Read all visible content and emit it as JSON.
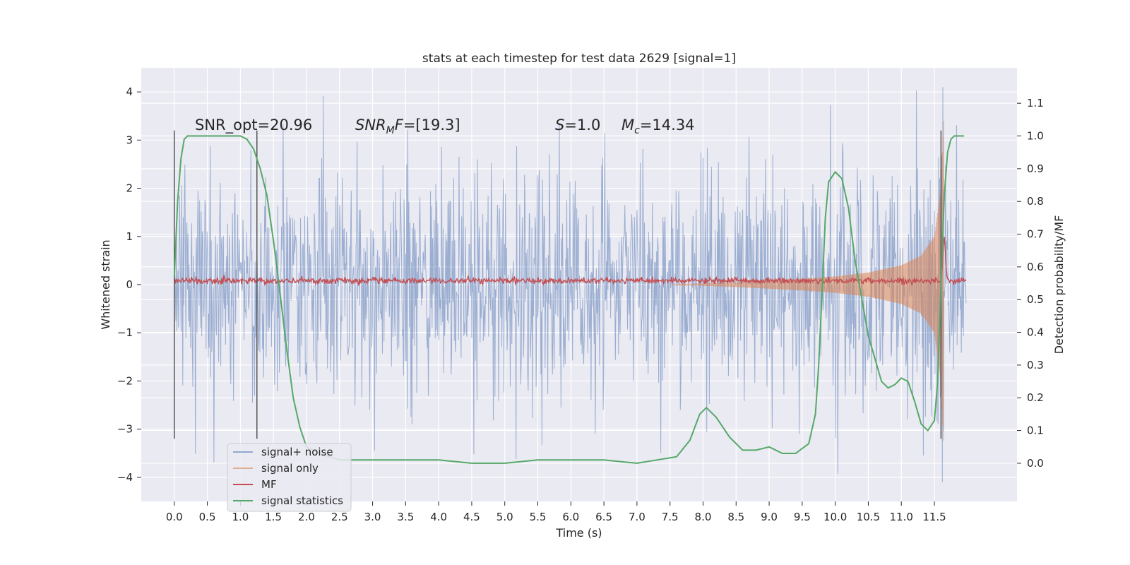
{
  "chart_data": {
    "type": "line",
    "title": "stats at each timestep for test data 2629 [signal=1]",
    "xlabel": "Time (s)",
    "ylabel": "Whitened strain",
    "y2label": "Detection probability/MF",
    "xlim": [
      -0.5,
      12.75
    ],
    "ylim": [
      -4.5,
      4.5
    ],
    "y2lim": [
      -0.1167,
      1.2083
    ],
    "xticks": [
      0.0,
      0.5,
      1.0,
      1.5,
      2.0,
      2.5,
      3.0,
      3.5,
      4.0,
      4.5,
      5.0,
      5.5,
      6.0,
      6.5,
      7.0,
      7.5,
      8.0,
      8.5,
      9.0,
      9.5,
      10.0,
      10.5,
      11.0,
      11.5
    ],
    "xtick_labels": [
      "0.0",
      "0.5",
      "1.0",
      "1.5",
      "2.0",
      "2.5",
      "3.0",
      "3.5",
      "4.0",
      "4.5",
      "5.0",
      "5.5",
      "6.0",
      "6.5",
      "7.0",
      "7.5",
      "8.0",
      "8.5",
      "9.0",
      "9.5",
      "10.0",
      "10.5",
      "11.0",
      "11.5"
    ],
    "yticks": [
      4,
      3,
      2,
      1,
      0,
      -1,
      -2,
      -3,
      -4
    ],
    "ytick_labels": [
      "4",
      "3",
      "2",
      "1",
      "0",
      "−1",
      "−2",
      "−3",
      "−4"
    ],
    "y2ticks": [
      1.1,
      1.0,
      0.9,
      0.8,
      0.7,
      0.6,
      0.5,
      0.4,
      0.3,
      0.2,
      0.1,
      0.0
    ],
    "y2tick_labels": [
      "1.1",
      "1.0",
      "0.9",
      "0.8",
      "0.7",
      "0.6",
      "0.5",
      "0.4",
      "0.3",
      "0.2",
      "0.1",
      "0.0"
    ],
    "grid": true,
    "legend_position": "lower-left",
    "annotations": [
      {
        "text": "SNR_opt=20.96"
      },
      {
        "text": "SNR_MF=[19.3]"
      },
      {
        "text": "S=1.0"
      },
      {
        "text": "M_c=14.34"
      }
    ],
    "vlines": [
      0.0,
      1.25,
      11.6
    ],
    "vline_range": [
      -3.2,
      3.2
    ],
    "series": [
      {
        "name": "signal+ noise",
        "axis": "left",
        "color": "#4c72b0",
        "description_stats": {
          "x_range": [
            0.0,
            11.98
          ],
          "typical_abs": 1.3,
          "max": 4.1,
          "min": -4.1
        }
      },
      {
        "name": "signal only",
        "axis": "left",
        "color": "#dd8452",
        "envelope": {
          "x": [
            7.5,
            8.5,
            9.5,
            10.0,
            10.5,
            11.0,
            11.3,
            11.5,
            11.6,
            11.64
          ],
          "amp": [
            0.0,
            0.05,
            0.12,
            0.17,
            0.25,
            0.4,
            0.6,
            1.0,
            2.0,
            3.4
          ]
        }
      },
      {
        "name": "MF",
        "axis": "left",
        "color": "#c44e52",
        "baseline": 0.08,
        "peak": {
          "x": 11.65,
          "y": 1.0
        }
      },
      {
        "name": "signal statistics",
        "axis": "right",
        "color": "#55a868",
        "x": [
          0.0,
          0.05,
          0.1,
          0.15,
          0.2,
          0.3,
          0.5,
          0.8,
          1.0,
          1.1,
          1.2,
          1.3,
          1.4,
          1.5,
          1.6,
          1.7,
          1.8,
          1.9,
          2.0,
          2.2,
          2.5,
          3.0,
          3.5,
          4.0,
          4.5,
          5.0,
          5.5,
          6.0,
          6.5,
          7.0,
          7.3,
          7.6,
          7.8,
          7.95,
          8.05,
          8.2,
          8.4,
          8.6,
          8.8,
          9.0,
          9.2,
          9.4,
          9.6,
          9.7,
          9.75,
          9.8,
          9.85,
          9.9,
          10.0,
          10.1,
          10.2,
          10.3,
          10.5,
          10.7,
          10.8,
          10.9,
          11.0,
          11.1,
          11.2,
          11.3,
          11.4,
          11.5,
          11.55,
          11.6,
          11.65,
          11.7,
          11.75,
          11.8,
          11.85,
          11.9,
          11.95
        ],
        "values": [
          0.57,
          0.8,
          0.93,
          0.99,
          1.0,
          1.0,
          1.0,
          1.0,
          1.0,
          0.99,
          0.96,
          0.9,
          0.82,
          0.68,
          0.52,
          0.35,
          0.2,
          0.11,
          0.05,
          0.03,
          0.01,
          0.01,
          0.01,
          0.01,
          0.0,
          0.0,
          0.01,
          0.01,
          0.01,
          0.0,
          0.01,
          0.02,
          0.07,
          0.15,
          0.17,
          0.14,
          0.08,
          0.04,
          0.04,
          0.05,
          0.03,
          0.03,
          0.06,
          0.15,
          0.3,
          0.52,
          0.75,
          0.86,
          0.89,
          0.87,
          0.78,
          0.62,
          0.39,
          0.25,
          0.23,
          0.24,
          0.26,
          0.25,
          0.19,
          0.12,
          0.1,
          0.13,
          0.25,
          0.55,
          0.82,
          0.95,
          0.99,
          1.0,
          1.0,
          1.0,
          1.0
        ]
      }
    ]
  }
}
